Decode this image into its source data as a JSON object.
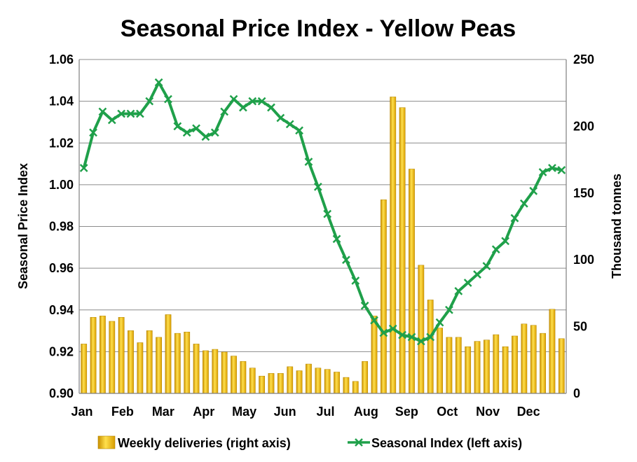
{
  "chart_data": {
    "type": "bar+line",
    "title": "Seasonal Price Index - Yellow Peas",
    "ylabel_left": "Seasonal Price Index",
    "ylabel_right": "Thousand tonnes",
    "ylim_left": [
      0.9,
      1.06
    ],
    "yticks_left": [
      "0.90",
      "0.92",
      "0.94",
      "0.96",
      "0.98",
      "1.00",
      "1.02",
      "1.04",
      "1.06"
    ],
    "ylim_right": [
      0,
      250
    ],
    "yticks_right": [
      "0",
      "50",
      "100",
      "150",
      "200",
      "250"
    ],
    "x_labels": [
      "Jan",
      "Feb",
      "Mar",
      "Apr",
      "May",
      "Jun",
      "Jul",
      "Aug",
      "Sep",
      "Oct",
      "Nov",
      "Dec"
    ],
    "weeks": 52,
    "grid": true,
    "legend_position": "bottom",
    "series": [
      {
        "name": "Weekly deliveries (right axis)",
        "axis": "right",
        "type": "bar",
        "color": "#F2B705",
        "values": [
          37,
          57,
          58,
          54,
          57,
          47,
          38,
          47,
          42,
          59,
          45,
          46,
          37,
          32,
          33,
          31,
          28,
          24,
          19,
          13,
          15,
          15,
          20,
          17,
          22,
          19,
          18,
          16,
          12,
          9,
          24,
          58,
          145,
          222,
          214,
          168,
          96,
          70,
          49,
          42,
          42,
          35,
          39,
          40,
          44,
          35,
          43,
          52,
          51,
          45,
          63,
          41
        ]
      },
      {
        "name": "Seasonal Index (left axis)",
        "axis": "left",
        "type": "line",
        "color": "#1FA04A",
        "values": [
          1.008,
          1.025,
          1.035,
          1.031,
          1.034,
          1.034,
          1.034,
          1.04,
          1.049,
          1.041,
          1.028,
          1.025,
          1.027,
          1.023,
          1.025,
          1.035,
          1.041,
          1.037,
          1.04,
          1.04,
          1.037,
          1.032,
          1.029,
          1.026,
          1.011,
          0.999,
          0.986,
          0.974,
          0.964,
          0.954,
          0.942,
          0.935,
          0.929,
          0.931,
          0.928,
          0.927,
          0.925,
          0.927,
          0.934,
          0.94,
          0.949,
          0.953,
          0.957,
          0.961,
          0.969,
          0.973,
          0.984,
          0.991,
          0.997,
          1.006,
          1.008,
          1.007
        ]
      }
    ]
  }
}
